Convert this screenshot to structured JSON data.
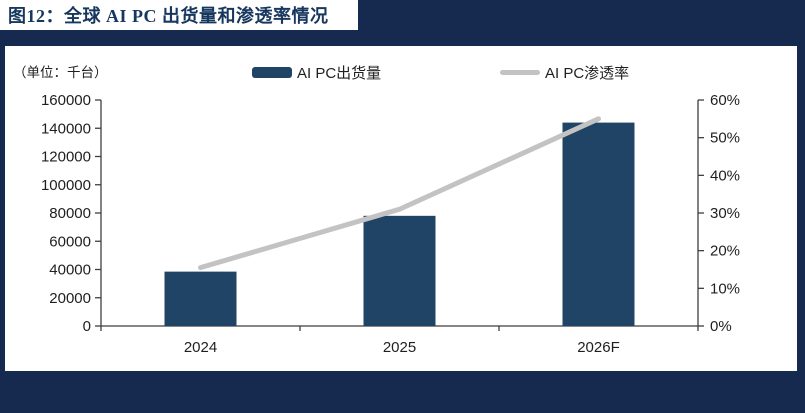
{
  "header": {
    "title": "图12：全球 AI PC 出货量和渗透率情况"
  },
  "unit_label": "（单位：千台）",
  "legend": [
    {
      "label": "AI PC出货量",
      "type": "bar"
    },
    {
      "label": "AI PC渗透率",
      "type": "line"
    }
  ],
  "colors": {
    "band_navy": "#152a4e",
    "title_navy": "#17375e",
    "bar": "#1f4465",
    "line": "#c3c3c3",
    "axis": "#3f3f3f",
    "text": "#1f1f1f"
  },
  "chart_data": {
    "type": "bar",
    "subtype": "bar-line-combo",
    "title": "全球 AI PC 出货量和渗透率情况",
    "unit": "千台",
    "categories": [
      "2024",
      "2025",
      "2026F"
    ],
    "series": [
      {
        "name": "AI PC出货量",
        "type": "bar",
        "axis": "left",
        "values": [
          38500,
          78000,
          144000
        ]
      },
      {
        "name": "AI PC渗透率",
        "type": "line",
        "axis": "right",
        "values": [
          15.5,
          31,
          55
        ],
        "value_format": "percent"
      }
    ],
    "left_axis": {
      "min": 0,
      "max": 160000,
      "step": 20000,
      "tick_labels": [
        "0",
        "20000",
        "40000",
        "60000",
        "80000",
        "100000",
        "120000",
        "140000",
        "160000"
      ]
    },
    "right_axis": {
      "min": 0,
      "max": 60,
      "step": 10,
      "tick_labels": [
        "0%",
        "10%",
        "20%",
        "30%",
        "40%",
        "50%",
        "60%"
      ]
    },
    "grid": false,
    "legend_position": "top"
  }
}
